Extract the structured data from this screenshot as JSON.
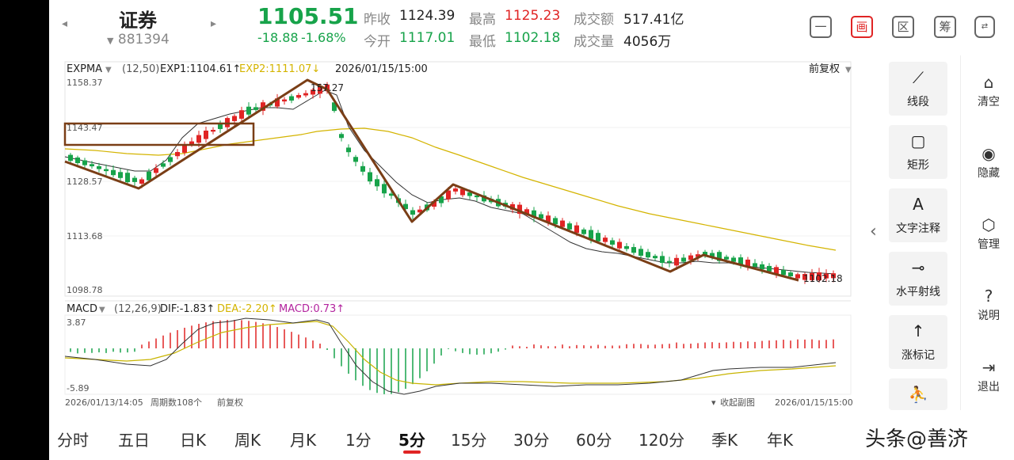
{
  "header": {
    "stock_name": "证券",
    "stock_code": "881394",
    "price": "1105.51",
    "change": "-18.88",
    "change_pct": "-1.68%",
    "prev_close_label": "昨收",
    "prev_close": "1124.39",
    "open_label": "今开",
    "open": "1117.01",
    "high_label": "最高",
    "high": "1125.23",
    "low_label": "最低",
    "low": "1102.18",
    "amount_label": "成交额",
    "amount": "517.41亿",
    "volume_label": "成交量",
    "volume": "4056万",
    "buttons": [
      "一",
      "画",
      "区",
      "筹",
      "竖屏"
    ]
  },
  "main_panel": {
    "indicator": "EXPMA",
    "params": "(12,50)",
    "exp1": "EXP1:1104.61↑",
    "exp2": "EXP2:1111.07↓",
    "datetime": "2026/01/15/15:00",
    "adjust": "前复权",
    "y_labels": [
      "1158.37",
      "1143.47",
      "1128.57",
      "1113.68",
      "1098.78"
    ],
    "high_annot": "157.27",
    "low_annot": "1102.18"
  },
  "macd_panel": {
    "indicator": "MACD",
    "params": "(12,26,9)",
    "dif": "DIF:-1.83↑",
    "dea": "DEA:-2.20↑",
    "macd": "MACD:0.73↑",
    "y_top": "3.87",
    "y_bottom": "-5.89"
  },
  "footer": {
    "start_time": "2026/01/13/14:05",
    "periods": "周期数108个",
    "adjust": "前复权",
    "collapse": "收起副图",
    "end_time": "2026/01/15/15:00"
  },
  "draw_tools": [
    "线段",
    "矩形",
    "文字注释",
    "水平射线",
    "涨标记"
  ],
  "side_menu": [
    "清空",
    "隐藏",
    "管理",
    "说明",
    "退出"
  ],
  "tabs": [
    "分时",
    "五日",
    "日K",
    "周K",
    "月K",
    "1分",
    "5分",
    "15分",
    "30分",
    "60分",
    "120分",
    "季K",
    "年K"
  ],
  "active_tab": "5分",
  "watermark": "头条@善济",
  "colors": {
    "up": "#e02424",
    "down": "#17a34a",
    "exp2": "#d4b400",
    "annotation": "#7a3e16"
  }
}
